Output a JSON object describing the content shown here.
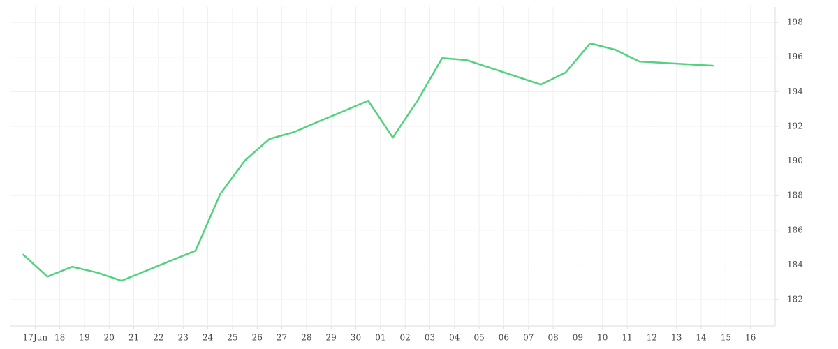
{
  "chart_data": {
    "type": "line",
    "x": [
      -0.5,
      0.5,
      1.5,
      2.5,
      3.5,
      4.5,
      5.5,
      6.5,
      7.5,
      8.5,
      9.5,
      10.5,
      11.5,
      12.5,
      13.5,
      14.5,
      15.5,
      16.5,
      17.5,
      18.5,
      19.5,
      20.5,
      21.5,
      22.5,
      23.5,
      24.5,
      25.5,
      26.5,
      27.5
    ],
    "values": [
      184.61,
      183.32,
      183.89,
      183.56,
      183.08,
      183.66,
      184.24,
      184.81,
      188.08,
      190.02,
      191.27,
      191.67,
      192.28,
      192.87,
      193.48,
      191.35,
      193.48,
      195.94,
      195.82,
      195.35,
      194.88,
      194.41,
      195.1,
      196.79,
      196.43,
      195.74,
      195.66,
      195.58,
      195.5
    ],
    "color": "#50d27e",
    "xlim": [
      -1,
      30
    ],
    "xticks": [
      {
        "value": 0,
        "label": "17Jun"
      },
      {
        "value": 1,
        "label": "18"
      },
      {
        "value": 2,
        "label": "19"
      },
      {
        "value": 3,
        "label": "20"
      },
      {
        "value": 4,
        "label": "21"
      },
      {
        "value": 5,
        "label": "22"
      },
      {
        "value": 6,
        "label": "23"
      },
      {
        "value": 7,
        "label": "24"
      },
      {
        "value": 8,
        "label": "25"
      },
      {
        "value": 9,
        "label": "26"
      },
      {
        "value": 10,
        "label": "27"
      },
      {
        "value": 11,
        "label": "28"
      },
      {
        "value": 12,
        "label": "29"
      },
      {
        "value": 13,
        "label": "30"
      },
      {
        "value": 14,
        "label": "01"
      },
      {
        "value": 15,
        "label": "02"
      },
      {
        "value": 16,
        "label": "03"
      },
      {
        "value": 17,
        "label": "04"
      },
      {
        "value": 18,
        "label": "05"
      },
      {
        "value": 19,
        "label": "06"
      },
      {
        "value": 20,
        "label": "07"
      },
      {
        "value": 21,
        "label": "08"
      },
      {
        "value": 22,
        "label": "09"
      },
      {
        "value": 23,
        "label": "10"
      },
      {
        "value": 24,
        "label": "11"
      },
      {
        "value": 25,
        "label": "12"
      },
      {
        "value": 26,
        "label": "13"
      },
      {
        "value": 27,
        "label": "14"
      },
      {
        "value": 28,
        "label": "15"
      },
      {
        "value": 29,
        "label": "16"
      }
    ],
    "ylim": [
      180.47,
      198.89
    ],
    "yticks": [
      182,
      184,
      186,
      188,
      190,
      192,
      194,
      196,
      198
    ],
    "grid": true
  }
}
